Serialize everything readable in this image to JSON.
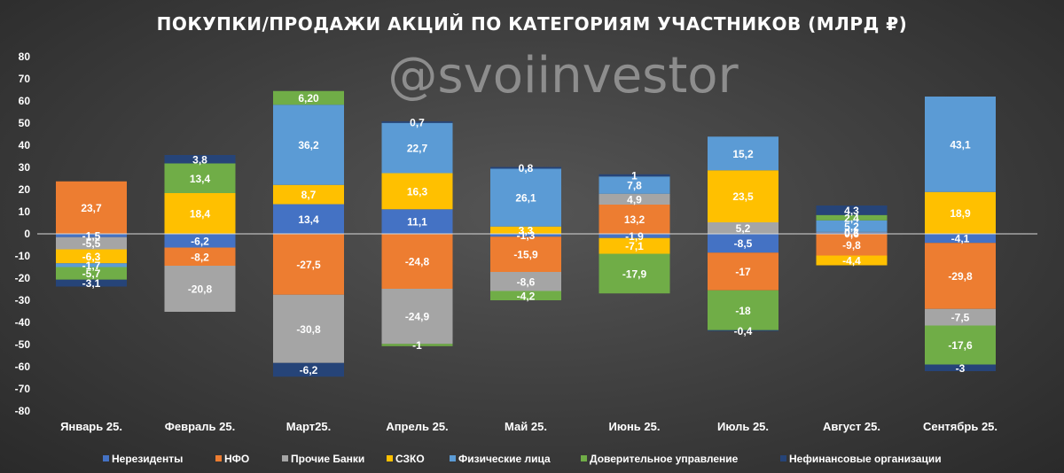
{
  "watermark": "@svoiinvestor",
  "chart_data": {
    "type": "bar",
    "stacked": true,
    "title": "ПОКУПКИ/ПРОДАЖИ АКЦИЙ ПО КАТЕГОРИЯМ УЧАСТНИКОВ (МЛРД ₽)",
    "xlabel": "",
    "ylabel": "",
    "ylim": [
      -80,
      80
    ],
    "yticks": [
      80,
      70,
      60,
      50,
      40,
      30,
      20,
      10,
      0,
      -10,
      -20,
      -30,
      -40,
      -50,
      -60,
      -70,
      -80
    ],
    "grid": false,
    "legend_position": "bottom",
    "categories": [
      "Январь 25.",
      "Февраль 25.",
      "Март25.",
      "Апрель 25.",
      "Май 25.",
      "Июнь 25.",
      "Июль 25.",
      "Август 25.",
      "Сентябрь 25."
    ],
    "series": [
      {
        "name": "Нерезиденты",
        "color": "#4472c4",
        "values": [
          -1.5,
          -6.2,
          13.4,
          11.1,
          -1.3,
          -1.9,
          -8.5,
          0.6,
          -4.1
        ],
        "labels": [
          "-1,5",
          "-6,2",
          "13,4",
          "11,1",
          "-1,3",
          "-1,9",
          "-8,5",
          "0,6",
          "-4,1"
        ]
      },
      {
        "name": "НФО",
        "color": "#ed7d31",
        "values": [
          23.7,
          -8.2,
          -27.5,
          -24.8,
          -15.9,
          13.2,
          -17,
          -9.8,
          -29.8
        ],
        "labels": [
          "23,7",
          "-8,2",
          "-27,5",
          "-24,8",
          "-15,9",
          "13,2",
          "-17",
          "-9,8",
          "-29,8"
        ]
      },
      {
        "name": "Прочие Банки",
        "color": "#a5a5a5",
        "values": [
          -5.5,
          -20.8,
          -30.8,
          -24.9,
          -8.6,
          4.9,
          5.2,
          0.3,
          -7.5
        ],
        "labels": [
          "-5,5",
          "-20,8",
          "-30,8",
          "-24,9",
          "-8,6",
          "4,9",
          "5,2",
          "0,3",
          "-7,5"
        ]
      },
      {
        "name": "СЗКО",
        "color": "#ffc000",
        "values": [
          -6.3,
          18.4,
          8.7,
          16.3,
          3.3,
          -7.1,
          23.5,
          -4.4,
          18.9
        ],
        "labels": [
          "-6,3",
          "18,4",
          "8,7",
          "16,3",
          "3,3",
          "-7,1",
          "23,5",
          "-4,4",
          "18,9"
        ]
      },
      {
        "name": "Физические лица",
        "color": "#5b9bd5",
        "values": [
          -1.7,
          0,
          36.2,
          22.7,
          26.1,
          7.8,
          15.2,
          5.2,
          43.1
        ],
        "labels": [
          "-1,7",
          "",
          "36,2",
          "22,7",
          "26,1",
          "7,8",
          "15,2",
          "5,2",
          "43,1"
        ]
      },
      {
        "name": "Доверительное управление",
        "color": "#70ad47",
        "values": [
          -5.7,
          13.4,
          6.2,
          -1,
          -4.2,
          -17.9,
          -18,
          2.4,
          -17.6
        ],
        "labels": [
          "-5,7",
          "13,4",
          "6,20",
          "-1",
          "-4,2",
          "-17,9",
          "-18",
          "2,4",
          "-17,6"
        ]
      },
      {
        "name": "Нефинансовые организации",
        "color": "#264478",
        "values": [
          -3.1,
          3.8,
          -6.2,
          0.7,
          0.8,
          1,
          -0.4,
          4.3,
          -3
        ],
        "labels": [
          "-3,1",
          "3,8",
          "-6,2",
          "0,7",
          "0,8",
          "1",
          "-0,4",
          "4,3",
          "-3"
        ]
      }
    ]
  }
}
